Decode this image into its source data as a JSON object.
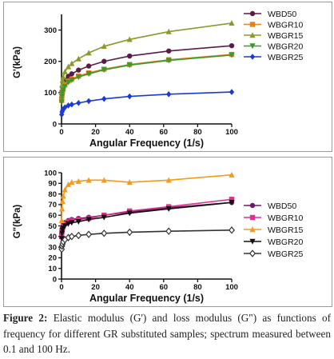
{
  "caption": {
    "label": "Figure 2:",
    "text": "Elastic modulus (G') and loss modulus (G\") as functions of frequency for different GR substituted samples; spectrum measured between 0.1 and 100 Hz."
  },
  "chart_data": [
    {
      "type": "line",
      "xlabel": "Angular Frequency (1/s)",
      "ylabel": "G'(kPa)",
      "xlim": [
        0,
        100
      ],
      "ylim": [
        0,
        350
      ],
      "xticks": [
        0,
        20,
        40,
        60,
        80,
        100
      ],
      "yticks": [
        0,
        100,
        200,
        300
      ],
      "grid": false,
      "legend_position": "top-right",
      "x": [
        0.1,
        0.3,
        0.6,
        1,
        2,
        4,
        6,
        10,
        16,
        25,
        40,
        63,
        100
      ],
      "series": [
        {
          "name": "WBD50",
          "color": "#5a1a4a",
          "marker": "circle",
          "values": [
            85,
            105,
            118,
            127,
            140,
            152,
            160,
            172,
            185,
            200,
            217,
            233,
            250
          ]
        },
        {
          "name": "WBGR10",
          "color": "#e8821e",
          "marker": "square",
          "values": [
            75,
            92,
            103,
            112,
            125,
            137,
            143,
            153,
            163,
            175,
            190,
            205,
            222
          ]
        },
        {
          "name": "WBGR15",
          "color": "#8a9a2a",
          "marker": "triangle-up",
          "values": [
            100,
            125,
            140,
            150,
            167,
            183,
            193,
            208,
            227,
            248,
            270,
            295,
            322
          ]
        },
        {
          "name": "WBGR20",
          "color": "#3a9a2a",
          "marker": "triangle-down",
          "values": [
            70,
            88,
            100,
            108,
            120,
            133,
            140,
            150,
            160,
            173,
            188,
            203,
            220
          ]
        },
        {
          "name": "WBGR25",
          "color": "#1a3ad8",
          "marker": "diamond",
          "values": [
            30,
            38,
            43,
            47,
            53,
            59,
            62,
            67,
            73,
            80,
            88,
            95,
            102
          ]
        }
      ]
    },
    {
      "type": "line",
      "xlabel": "Angular Frequency (1/s)",
      "ylabel": "G\"(kPa)",
      "xlim": [
        0,
        100
      ],
      "ylim": [
        0,
        100
      ],
      "xticks": [
        0,
        20,
        40,
        60,
        80,
        100
      ],
      "yticks": [
        0,
        10,
        20,
        30,
        40,
        50,
        60,
        70,
        80,
        90,
        100
      ],
      "grid": false,
      "legend_position": "right",
      "x": [
        0.1,
        0.3,
        0.6,
        1,
        2,
        4,
        6,
        10,
        16,
        25,
        40,
        63,
        100
      ],
      "series": [
        {
          "name": "WBD50",
          "color": "#6a1a6a",
          "marker": "circle",
          "values": [
            43,
            47,
            49,
            51,
            53,
            55,
            56,
            57,
            58,
            60,
            63,
            67,
            72
          ]
        },
        {
          "name": "WBGR10",
          "color": "#e0308a",
          "marker": "square",
          "values": [
            40,
            45,
            48,
            50,
            52,
            54,
            55,
            56,
            57,
            60,
            64,
            68,
            75
          ]
        },
        {
          "name": "WBGR15",
          "color": "#f59a1a",
          "marker": "triangle-up",
          "values": [
            55,
            66,
            73,
            78,
            84,
            89,
            91,
            92,
            93,
            93,
            91,
            93,
            98
          ]
        },
        {
          "name": "WBGR20",
          "color": "#111111",
          "marker": "triangle-down",
          "values": [
            38,
            43,
            46,
            48,
            50,
            52,
            53,
            54,
            56,
            58,
            62,
            66,
            72
          ]
        },
        {
          "name": "WBGR25",
          "color": "#333333",
          "marker": "diamond-open",
          "values": [
            28,
            31,
            33,
            35,
            37,
            39,
            40,
            41,
            42,
            43,
            44,
            45,
            46
          ]
        }
      ]
    }
  ]
}
